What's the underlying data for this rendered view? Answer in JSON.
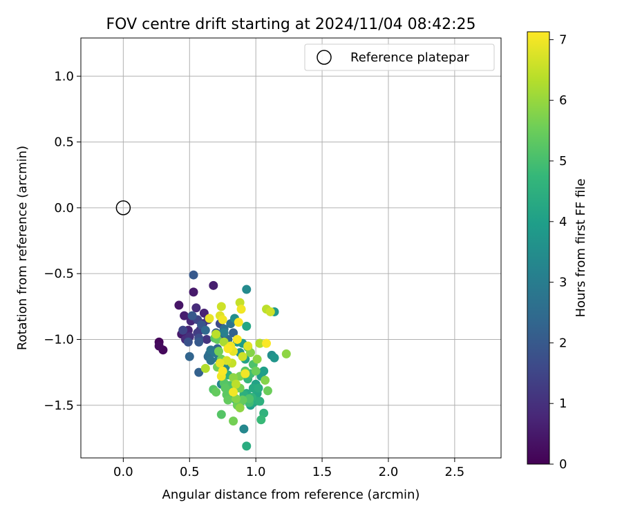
{
  "chart_data": {
    "type": "scatter",
    "title": "FOV centre drift starting at 2024/11/04 08:42:25",
    "xlabel": "Angular distance from reference (arcmin)",
    "ylabel": "Rotation from reference (arcmin)",
    "xlim": [
      -0.32,
      2.85
    ],
    "ylim": [
      -1.9,
      1.29
    ],
    "xticks": [
      0.0,
      0.5,
      1.0,
      1.5,
      2.0,
      2.5
    ],
    "xtick_labels": [
      "0.0",
      "0.5",
      "1.0",
      "1.5",
      "2.0",
      "2.5"
    ],
    "yticks": [
      1.0,
      0.5,
      0.0,
      -0.5,
      -1.0,
      -1.5
    ],
    "ytick_labels": [
      "1.0",
      "0.5",
      "0.0",
      "−0.5",
      "−1.0",
      "−1.5"
    ],
    "grid": true,
    "legend": {
      "position": "top-right",
      "entries": [
        {
          "label": "Reference platepar",
          "marker": "open-circle"
        }
      ]
    },
    "reference_point": {
      "x": 0.0,
      "y": 0.0
    },
    "colorbar": {
      "label": "Hours from first FF file",
      "range": [
        0,
        7.13
      ],
      "ticks": [
        0,
        1,
        2,
        3,
        4,
        5,
        6,
        7
      ],
      "tick_labels": [
        "0",
        "1",
        "2",
        "3",
        "4",
        "5",
        "6",
        "7"
      ],
      "colormap": [
        "#440154",
        "#482878",
        "#3e4989",
        "#31688e",
        "#26828e",
        "#1f9e89",
        "#35b779",
        "#6ece58",
        "#b5de2b",
        "#fde725"
      ]
    },
    "series": [
      {
        "name": "Hours 0-1",
        "points": [
          [
            0.27,
            -1.02,
            0.1
          ],
          [
            0.27,
            -1.05,
            0.2
          ],
          [
            0.3,
            -1.08,
            0.15
          ],
          [
            0.42,
            -0.74,
            0.4
          ],
          [
            0.44,
            -0.96,
            0.5
          ],
          [
            0.46,
            -0.82,
            0.6
          ],
          [
            0.49,
            -0.93,
            0.7
          ],
          [
            0.51,
            -0.86,
            0.8
          ],
          [
            0.53,
            -0.64,
            0.5
          ],
          [
            0.55,
            -0.76,
            0.9
          ],
          [
            0.61,
            -0.8,
            0.7
          ],
          [
            0.68,
            -0.59,
            0.6
          ],
          [
            0.58,
            -0.93,
            0.8
          ],
          [
            0.6,
            -0.88,
            0.9
          ],
          [
            0.5,
            -0.98,
            1.0
          ],
          [
            0.47,
            -1.0,
            0.9
          ]
        ]
      },
      {
        "name": "Hours 1-3",
        "points": [
          [
            0.45,
            -0.93,
            1.5
          ],
          [
            0.49,
            -1.02,
            1.8
          ],
          [
            0.52,
            -0.82,
            2.0
          ],
          [
            0.53,
            -0.51,
            2.0
          ],
          [
            0.56,
            -0.95,
            1.3
          ],
          [
            0.56,
            -0.85,
            1.5
          ],
          [
            0.57,
            -0.99,
            1.7
          ],
          [
            0.59,
            -0.89,
            1.9
          ],
          [
            0.57,
            -1.02,
            2.0
          ],
          [
            0.57,
            -1.25,
            2.2
          ],
          [
            0.5,
            -1.13,
            2.3
          ],
          [
            0.62,
            -0.93,
            2.4
          ],
          [
            0.63,
            -1.0,
            1.1
          ],
          [
            0.64,
            -0.85,
            1.2
          ],
          [
            0.64,
            -1.13,
            2.5
          ],
          [
            0.65,
            -1.11,
            2.6
          ],
          [
            0.66,
            -1.08,
            2.8
          ],
          [
            0.69,
            -1.1,
            2.9
          ],
          [
            0.71,
            -1.07,
            2.3
          ],
          [
            0.7,
            -0.95,
            2.1
          ],
          [
            0.73,
            -0.88,
            1.6
          ],
          [
            0.74,
            -0.99,
            1.4
          ],
          [
            0.76,
            -0.92,
            2.6
          ],
          [
            0.79,
            -1.0,
            2.4
          ],
          [
            0.81,
            -0.88,
            2.7
          ],
          [
            0.83,
            -0.95,
            2.2
          ],
          [
            0.66,
            -1.16,
            2.7
          ],
          [
            0.72,
            -1.15,
            2.9
          ]
        ]
      },
      {
        "name": "Hours 3-5",
        "points": [
          [
            0.76,
            -0.95,
            3.1
          ],
          [
            0.8,
            -1.05,
            3.3
          ],
          [
            0.84,
            -0.84,
            3.5
          ],
          [
            0.86,
            -1.02,
            3.8
          ],
          [
            0.93,
            -0.62,
            3.4
          ],
          [
            0.93,
            -0.9,
            4.2
          ],
          [
            0.88,
            -1.1,
            3.6
          ],
          [
            0.9,
            -1.03,
            3.9
          ],
          [
            0.92,
            -1.15,
            4.1
          ],
          [
            0.74,
            -1.34,
            3.2
          ],
          [
            0.77,
            -1.21,
            3.4
          ],
          [
            0.79,
            -1.27,
            4.5
          ],
          [
            0.8,
            -1.41,
            4.3
          ],
          [
            0.82,
            -1.44,
            4.6
          ],
          [
            0.85,
            -1.46,
            4.4
          ],
          [
            0.87,
            -1.5,
            4.7
          ],
          [
            0.89,
            -1.47,
            4.8
          ],
          [
            0.91,
            -1.42,
            4.5
          ],
          [
            0.93,
            -1.41,
            4.3
          ],
          [
            0.95,
            -1.48,
            4.9
          ],
          [
            0.97,
            -1.44,
            4.6
          ],
          [
            0.99,
            -1.46,
            4.4
          ],
          [
            1.01,
            -1.41,
            4.2
          ],
          [
            1.03,
            -1.47,
            4.5
          ],
          [
            0.98,
            -1.37,
            4.3
          ],
          [
            1.0,
            -1.34,
            4.1
          ],
          [
            1.02,
            -1.37,
            4.4
          ],
          [
            1.04,
            -1.28,
            3.9
          ],
          [
            1.06,
            -1.24,
            4.0
          ],
          [
            1.06,
            -1.56,
            4.6
          ],
          [
            1.04,
            -1.61,
            4.8
          ],
          [
            1.12,
            -1.12,
            3.5
          ],
          [
            1.14,
            -1.14,
            3.7
          ],
          [
            1.14,
            -0.79,
            3.8
          ],
          [
            0.91,
            -1.68,
            3.3
          ],
          [
            0.93,
            -1.81,
            4.4
          ],
          [
            0.96,
            -1.5,
            4.0
          ],
          [
            0.98,
            -1.48,
            4.2
          ],
          [
            0.94,
            -1.3,
            4.7
          ],
          [
            0.96,
            -1.26,
            4.9
          ]
        ]
      },
      {
        "name": "Hours 5-6",
        "points": [
          [
            0.68,
            -1.38,
            5.2
          ],
          [
            0.7,
            -1.4,
            5.4
          ],
          [
            0.72,
            -1.09,
            5.6
          ],
          [
            0.74,
            -1.15,
            5.5
          ],
          [
            0.74,
            -1.57,
            5.2
          ],
          [
            0.8,
            -1.35,
            5.1
          ],
          [
            0.78,
            -1.42,
            5.3
          ],
          [
            0.79,
            -1.46,
            5.4
          ],
          [
            0.83,
            -1.62,
            5.6
          ],
          [
            0.85,
            -1.45,
            5.8
          ],
          [
            0.86,
            -1.5,
            5.5
          ],
          [
            0.88,
            -1.52,
            5.9
          ],
          [
            0.88,
            -1.37,
            5.6
          ],
          [
            0.9,
            -1.46,
            5.4
          ],
          [
            0.88,
            -1.28,
            5.7
          ],
          [
            0.92,
            -1.24,
            5.3
          ],
          [
            0.94,
            -1.06,
            5.2
          ],
          [
            0.96,
            -1.1,
            5.8
          ],
          [
            0.98,
            -1.19,
            5.1
          ],
          [
            1.0,
            -1.24,
            5.5
          ],
          [
            1.01,
            -1.15,
            5.9
          ],
          [
            1.03,
            -1.03,
            5.7
          ],
          [
            1.07,
            -1.31,
            5.8
          ],
          [
            1.09,
            -1.39,
            5.5
          ],
          [
            1.23,
            -1.11,
            5.9
          ],
          [
            0.71,
            -1.0,
            5.4
          ],
          [
            0.69,
            -0.99,
            5.2
          ],
          [
            0.71,
            -1.21,
            5.6
          ],
          [
            0.76,
            -1.33,
            5.2
          ],
          [
            0.77,
            -1.37,
            5.3
          ],
          [
            0.95,
            -1.45,
            5.1
          ],
          [
            0.83,
            -1.29,
            5.9
          ]
        ]
      },
      {
        "name": "Hours 6-7.2",
        "points": [
          [
            0.62,
            -1.22,
            6.3
          ],
          [
            0.65,
            -0.84,
            6.9
          ],
          [
            0.7,
            -0.96,
            6.4
          ],
          [
            0.73,
            -0.82,
            6.8
          ],
          [
            0.74,
            -0.75,
            6.6
          ],
          [
            0.75,
            -0.85,
            7.0
          ],
          [
            0.76,
            -1.02,
            6.2
          ],
          [
            0.78,
            -1.16,
            6.7
          ],
          [
            0.81,
            -1.05,
            7.0
          ],
          [
            0.83,
            -1.09,
            6.9
          ],
          [
            0.86,
            -1.0,
            7.1
          ],
          [
            0.87,
            -0.87,
            7.1
          ],
          [
            0.88,
            -0.72,
            6.5
          ],
          [
            0.89,
            -0.77,
            7.0
          ],
          [
            0.9,
            -1.13,
            6.6
          ],
          [
            0.92,
            -1.26,
            7.0
          ],
          [
            0.94,
            -1.05,
            6.8
          ],
          [
            1.03,
            -1.03,
            6.3
          ],
          [
            1.08,
            -0.77,
            6.4
          ],
          [
            1.11,
            -0.79,
            6.6
          ],
          [
            1.08,
            -1.03,
            7.1
          ],
          [
            0.74,
            -1.28,
            7.0
          ],
          [
            0.75,
            -1.24,
            7.1
          ],
          [
            0.83,
            -1.4,
            7.0
          ],
          [
            0.85,
            -1.34,
            6.4
          ],
          [
            0.79,
            -1.07,
            7.1
          ],
          [
            0.73,
            -1.18,
            6.9
          ],
          [
            0.82,
            -1.18,
            6.5
          ]
        ]
      }
    ]
  }
}
